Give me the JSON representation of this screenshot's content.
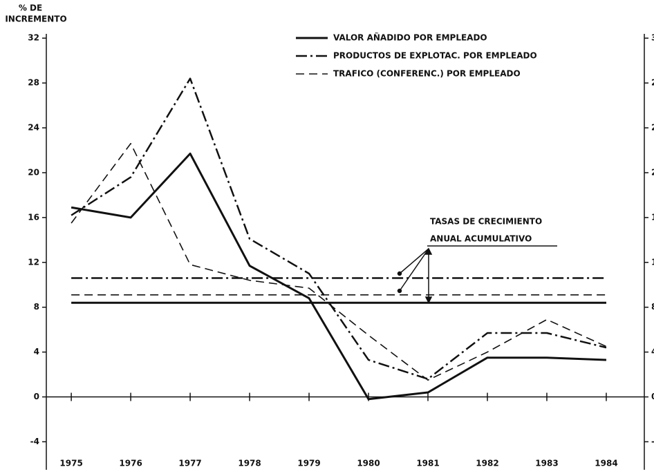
{
  "chart_data": {
    "type": "line",
    "y_label": [
      "% DE",
      "INCREMENTO"
    ],
    "x": [
      1975,
      1976,
      1977,
      1978,
      1979,
      1980,
      1981,
      1982,
      1983,
      1984
    ],
    "xlim": [
      1974.58,
      1984.64
    ],
    "xticks": [
      1975,
      1976,
      1977,
      1978,
      1979,
      1980,
      1981,
      1982,
      1983,
      1984
    ],
    "ylim": [
      -6.5,
      33
    ],
    "yticks": [
      -4,
      0,
      4,
      8,
      12,
      16,
      20,
      24,
      28,
      32
    ],
    "series": [
      {
        "name": "VALOR AÑADIDO POR EMPLEADO",
        "color": "#111111",
        "style": "solid",
        "values": [
          16.9,
          16.0,
          21.7,
          11.7,
          8.8,
          -0.2,
          0.4,
          3.5,
          3.5,
          3.3
        ],
        "average": 8.4
      },
      {
        "name": "PRODUCTOS DE EXPLOTAC. POR EMPLEADO",
        "color": "#111111",
        "style": "dashdot",
        "values": [
          16.2,
          19.6,
          28.4,
          14.1,
          11.0,
          3.3,
          1.6,
          5.7,
          5.7,
          4.4
        ],
        "average": 10.6
      },
      {
        "name": "TRAFICO (CONFERENC.) POR EMPLEADO",
        "color": "#111111",
        "style": "dashed",
        "values": [
          15.5,
          22.6,
          11.8,
          10.4,
          9.7,
          5.5,
          1.5,
          4.0,
          6.9,
          4.5
        ],
        "average": 9.1
      }
    ],
    "annotation": [
      "TASAS DE CRECIMIENTO",
      "ANUAL ACUMULATIVO"
    ]
  }
}
